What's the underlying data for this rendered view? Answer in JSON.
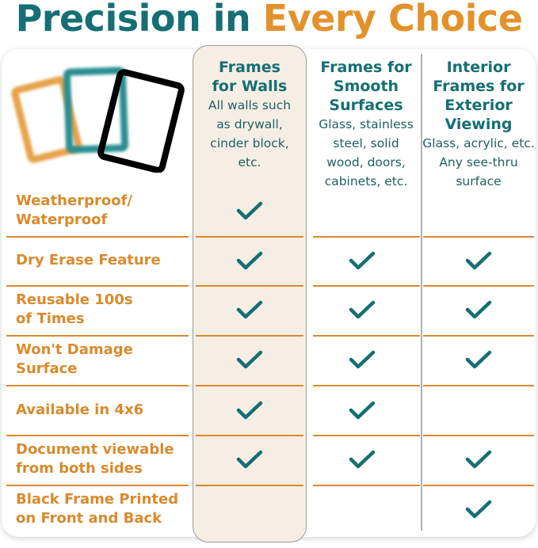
{
  "title": {
    "part1": "Precision in",
    "part2": "Every Choice"
  },
  "colors": {
    "teal": "#156f74",
    "orange": "#e3922b",
    "highlight": "#f6eee4"
  },
  "columns": [
    {
      "heading": "Frames\nfor Walls",
      "sub": "All walls such\nas drywall,\ncinder block,\netc."
    },
    {
      "heading": "Frames for\nSmooth\nSurfaces",
      "sub": "Glass, stainless\nsteel, solid\nwood, doors,\ncabinets, etc."
    },
    {
      "heading": "Interior\nFrames for\nExterior\nViewing",
      "sub": "Glass, acrylic, etc.\nAny see-thru\nsurface"
    }
  ],
  "rows": [
    {
      "label": "Weatherproof/\nWaterproof",
      "checks": [
        true,
        false,
        false
      ]
    },
    {
      "label": "Dry Erase Feature",
      "checks": [
        true,
        true,
        true
      ]
    },
    {
      "label": "Reusable 100s\nof Times",
      "checks": [
        true,
        true,
        true
      ]
    },
    {
      "label": "Won't Damage\nSurface",
      "checks": [
        true,
        true,
        true
      ]
    },
    {
      "label": "Available in 4x6",
      "checks": [
        true,
        true,
        false
      ]
    },
    {
      "label": "Document viewable\nfrom both sides",
      "checks": [
        true,
        true,
        true
      ]
    },
    {
      "label": "Black Frame Printed\non Front and Back",
      "checks": [
        false,
        false,
        true
      ]
    }
  ]
}
